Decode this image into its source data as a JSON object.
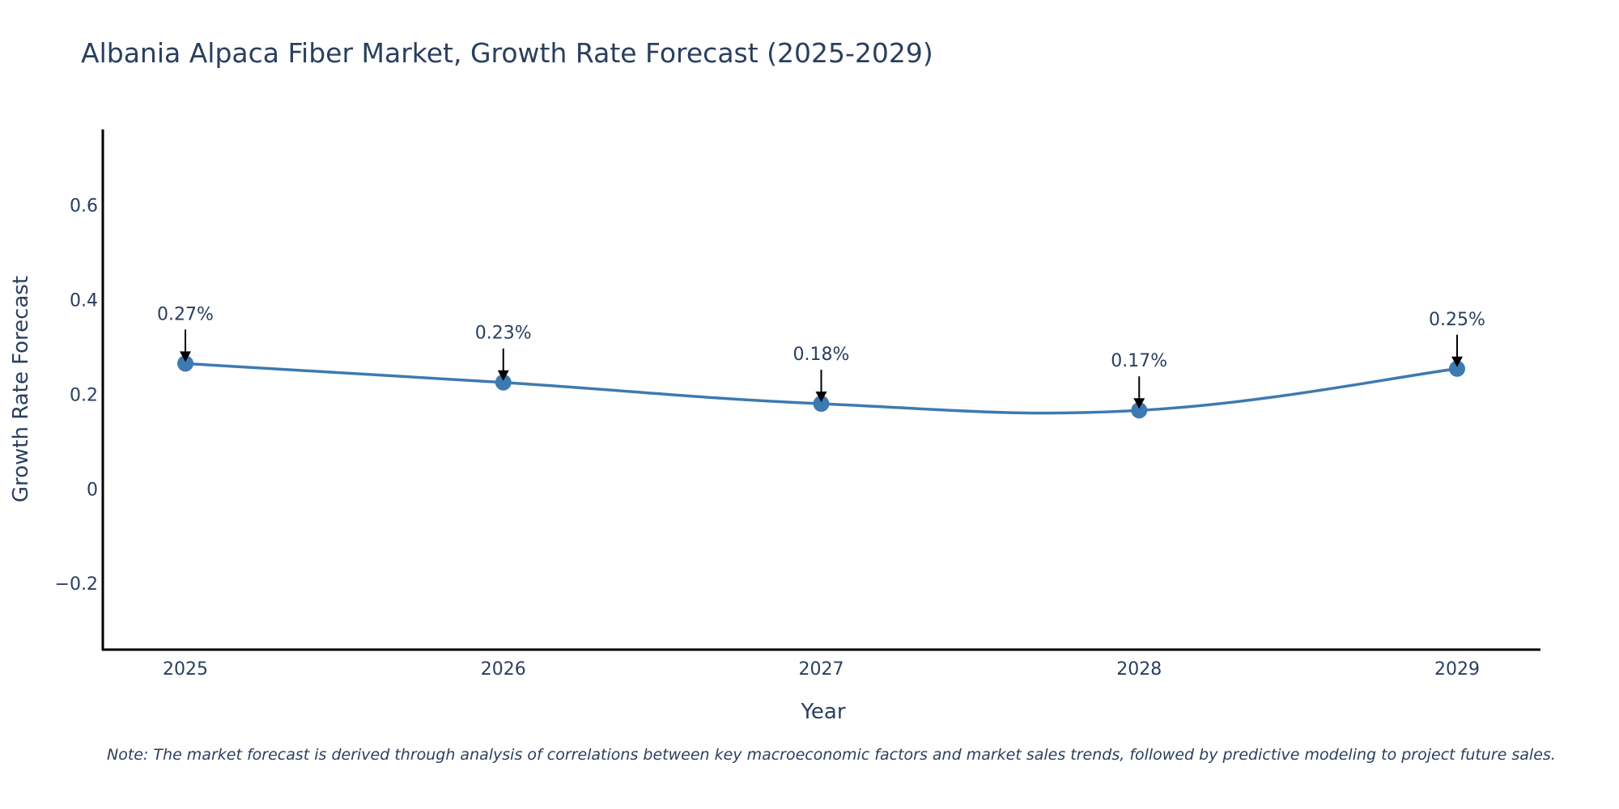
{
  "chart_data": {
    "type": "line",
    "title": "Albania Alpaca Fiber Market, Growth Rate Forecast (2025-2029)",
    "xlabel": "Year",
    "ylabel": "Growth Rate Forecast",
    "categories": [
      "2025",
      "2026",
      "2027",
      "2028",
      "2029"
    ],
    "values": [
      0.265,
      0.225,
      0.18,
      0.166,
      0.254
    ],
    "annotations": [
      "0.27%",
      "0.23%",
      "0.18%",
      "0.17%",
      "0.25%"
    ],
    "ylim": [
      -0.34,
      0.76
    ],
    "yticks": [
      -0.2,
      0,
      0.2,
      0.4,
      0.6
    ],
    "ytick_labels": [
      "−0.2",
      "0",
      "0.2",
      "0.4",
      "0.6"
    ],
    "grid": false,
    "line_color": "#3d7ab0",
    "note": "Note: The market forecast is derived through analysis of correlations between key macroeconomic factors and market sales trends, followed by predictive modeling to project future sales."
  }
}
